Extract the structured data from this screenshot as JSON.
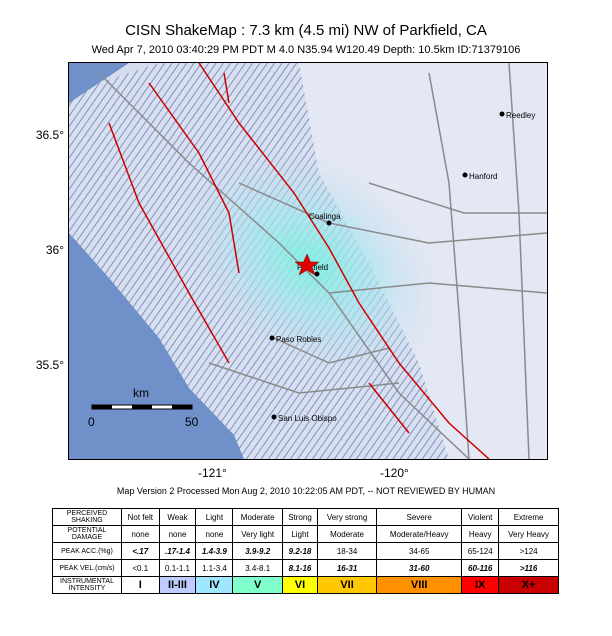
{
  "header": {
    "title": "CISN ShakeMap : 7.3 km (4.5 mi) NW of Parkfield, CA",
    "subtitle": "Wed Apr  7, 2010 03:40:29 PM PDT    M 4.0    N35.94 W120.49    Depth: 10.5km    ID:71379106"
  },
  "map": {
    "y_ticks": [
      "36.5°",
      "36°",
      "35.5°"
    ],
    "x_ticks": [
      "-121°",
      "-120°"
    ],
    "cities": [
      {
        "name": "Reedley"
      },
      {
        "name": "Hanford"
      },
      {
        "name": "Coalinga"
      },
      {
        "name": "Parkfield"
      },
      {
        "name": "Paso Robles"
      },
      {
        "name": "San Luis Obispo"
      }
    ],
    "scale": {
      "unit": "km",
      "start": "0",
      "end": "50"
    },
    "colors": {
      "ocean": "#6f90c8",
      "land": "#cfd8ec",
      "faults": "#cc0000",
      "shaking": "#7ee8e0",
      "epicenter": "#e00000"
    }
  },
  "process_note": "Map Version 2 Processed Mon Aug 2, 2010 10:22:05 AM PDT, -- NOT REVIEWED BY HUMAN",
  "legend": {
    "row_headers": {
      "shaking": "PERCEIVED SHAKING",
      "damage": "POTENTIAL DAMAGE",
      "acc": "PEAK ACC.(%g)",
      "vel": "PEAK VEL.(cm/s)",
      "intensity": "INSTRUMENTAL INTENSITY"
    },
    "shaking": [
      "Not felt",
      "Weak",
      "Light",
      "Moderate",
      "Strong",
      "Very strong",
      "Severe",
      "Violent",
      "Extreme"
    ],
    "damage": [
      "none",
      "none",
      "none",
      "Very light",
      "Light",
      "Moderate",
      "Moderate/Heavy",
      "Heavy",
      "Very Heavy"
    ],
    "acc": [
      "<.17",
      ".17-1.4",
      "1.4-3.9",
      "3.9-9.2",
      "9.2-18",
      "18-34",
      "34-65",
      "65-124",
      ">124"
    ],
    "vel": [
      "<0.1",
      "0.1-1.1",
      "1.1-3.4",
      "3.4-8.1",
      "8.1-16",
      "16-31",
      "31-60",
      "60-116",
      ">116"
    ],
    "intensity": [
      "I",
      "II-III",
      "IV",
      "V",
      "VI",
      "VII",
      "VIII",
      "IX",
      "X+"
    ],
    "intensity_colors": [
      "#ffffff",
      "#bfccff",
      "#a0e6ff",
      "#80ffcc",
      "#ffff00",
      "#ffc800",
      "#ff9100",
      "#ff0000",
      "#c80000"
    ]
  }
}
